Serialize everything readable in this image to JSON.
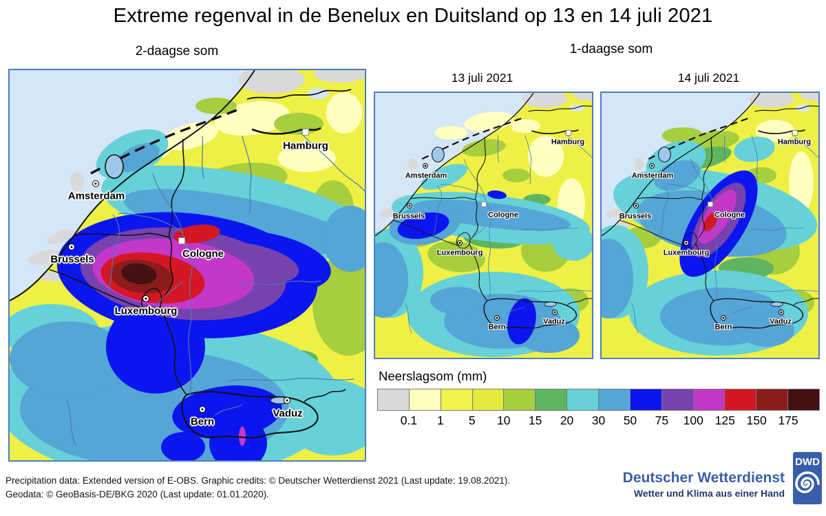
{
  "title": "Extreme regenval in de Benelux en Duitsland op 13 en 14 juli 2021",
  "panels": {
    "two_day": {
      "subtitle": "2-daagse som"
    },
    "one_day": {
      "subtitle": "1-daagse som",
      "maps": [
        {
          "title": "13 juli 2021"
        },
        {
          "title": "14 juli 2021"
        }
      ]
    }
  },
  "cities": {
    "hamburg": "Hamburg",
    "amsterdam": "Amsterdam",
    "brussels": "Brussels",
    "cologne": "Cologne",
    "luxembourg": "Luxembourg",
    "bern": "Bern",
    "vaduz": "Vaduz"
  },
  "legend": {
    "title": "Neerslagsom (mm)",
    "thresholds": [
      "0.1",
      "1",
      "5",
      "10",
      "15",
      "20",
      "30",
      "50",
      "75",
      "100",
      "125",
      "150",
      "175"
    ],
    "colors": [
      "#d9d9d9",
      "#ffffc2",
      "#f0f24e",
      "#e2ea3c",
      "#a6ce3e",
      "#5fb55f",
      "#66d1d8",
      "#55a5d6",
      "#0b16ee",
      "#7742ae",
      "#c438c9",
      "#d31724",
      "#8c1c1c",
      "#451112"
    ]
  },
  "map_colors": {
    "sea": "#d5e6f6",
    "no_data": "#d9d9d9",
    "frame": "#4a7ebf"
  },
  "footer": {
    "line1": "Precipitation data: Extended version of E-OBS. Graphic credits: © Deutscher Wetterdienst 2021 (Last update: 19.08.2021).",
    "line2": "Geodata: © GeoBasis-DE/BKG 2020 (Last update: 01.01.2020)."
  },
  "brand": {
    "name": "Deutscher Wetterdienst",
    "tagline": "Wetter und Klima aus einer Hand",
    "logo_text": "DWD",
    "blue": "#3a5dab"
  }
}
